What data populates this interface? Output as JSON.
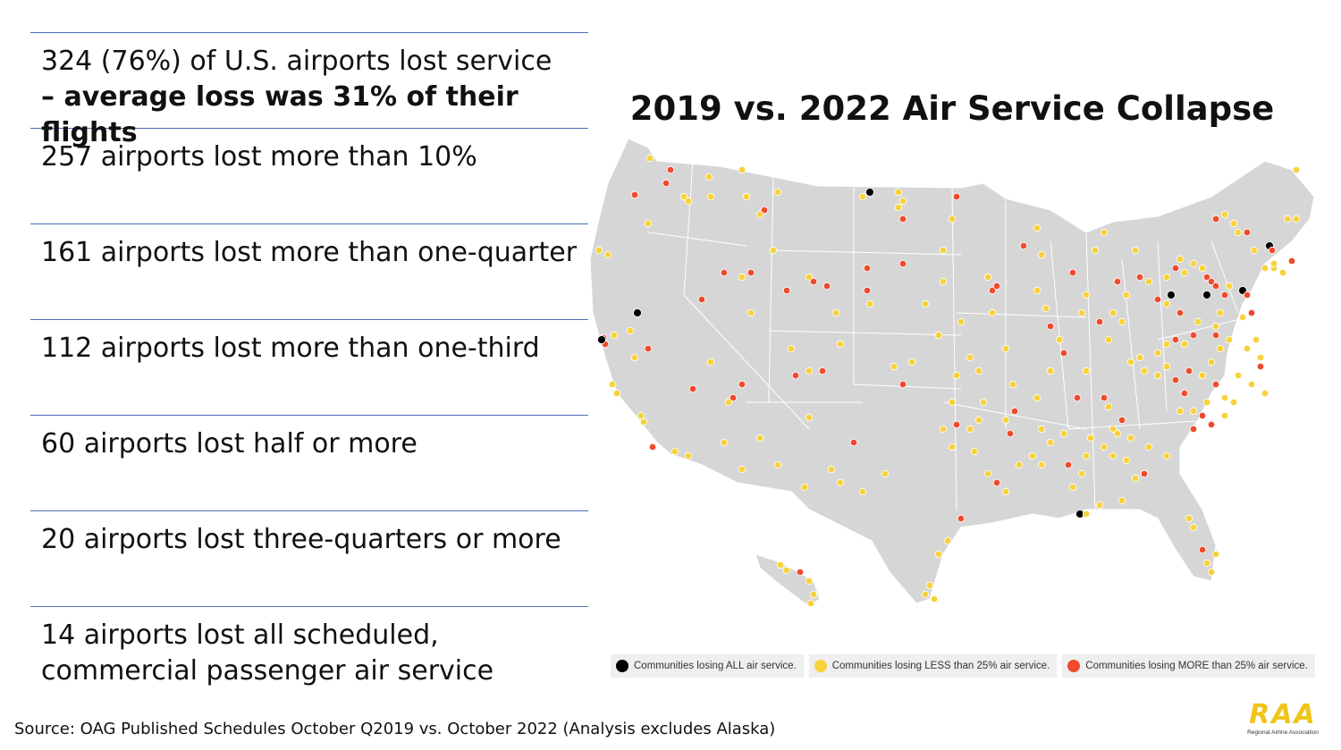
{
  "stats": [
    {
      "line1": "324 (76%) of U.S. airports lost service",
      "line2": "– average loss was 31% of their flights"
    },
    {
      "line1": "257 airports lost more than 10%",
      "line2": ""
    },
    {
      "line1": "161 airports lost more than one-quarter",
      "line2": ""
    },
    {
      "line1": "112 airports lost more than one-third",
      "line2": ""
    },
    {
      "line1": "60 airports lost half or more",
      "line2": ""
    },
    {
      "line1": "20 airports lost three-quarters or more",
      "line2": ""
    },
    {
      "line1": "14 airports lost all scheduled, commercial passenger air service",
      "line2": ""
    }
  ],
  "map": {
    "title": "2019 vs. 2022 Air Service Collapse",
    "land_color": "#d6d6d6",
    "border_color": "#ffffff"
  },
  "legend": [
    {
      "label": "Communities losing ALL air service.",
      "color": "#000000"
    },
    {
      "label": "Communities losing LESS than 25% air service.",
      "color": "#f7d23a"
    },
    {
      "label": "Communities losing MORE than 25% air service.",
      "color": "#f04a2e"
    }
  ],
  "source": "Source: OAG Published Schedules October Q2019 vs. October 2022 (Analysis excludes Alaska)",
  "logo": {
    "mark": "RAA",
    "name": "Regional Airline Association"
  }
}
